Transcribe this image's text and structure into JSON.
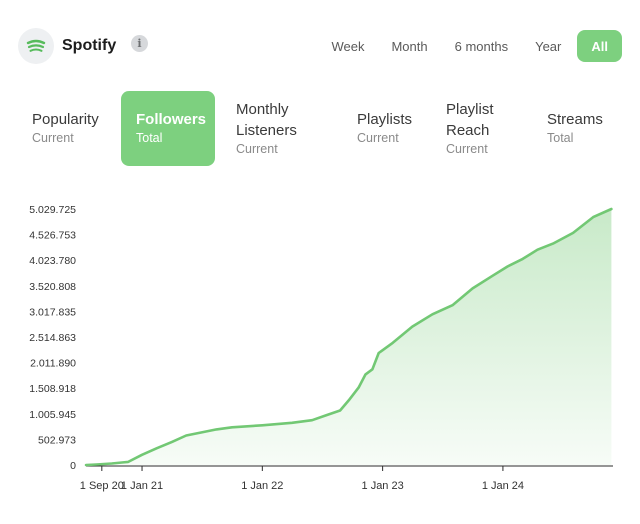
{
  "header": {
    "brand_name": "Spotify",
    "info_label": "i",
    "ranges": [
      {
        "label": "Week",
        "active": false
      },
      {
        "label": "Month",
        "active": false
      },
      {
        "label": "6 months",
        "active": false
      },
      {
        "label": "Year",
        "active": false
      },
      {
        "label": "All",
        "active": true
      }
    ]
  },
  "metrics": [
    {
      "label": [
        "Popularity"
      ],
      "sub": "Current",
      "active": false
    },
    {
      "label": [
        "Followers"
      ],
      "sub": "Total",
      "active": true
    },
    {
      "label": [
        "Monthly",
        "Listeners"
      ],
      "sub": "Current",
      "active": false
    },
    {
      "label": [
        "Playlists"
      ],
      "sub": "Current",
      "active": false
    },
    {
      "label": [
        "Playlist",
        "Reach"
      ],
      "sub": "Current",
      "active": false
    },
    {
      "label": [
        "Streams"
      ],
      "sub": "Total",
      "active": false
    }
  ],
  "colors": {
    "accent": "#7dd07f",
    "line": "#72c874",
    "fill": "#9bd89c",
    "brand_icon": "#57bb5c"
  },
  "chart_data": {
    "type": "area",
    "x_axis": "date",
    "xlim": [
      "2020-07-15",
      "2024-11-30"
    ],
    "ylim": [
      0,
      5029725
    ],
    "y_ticks": [
      "0",
      "502.973",
      "1.005.945",
      "1.508.918",
      "2.011.890",
      "2.514.863",
      "3.017.835",
      "3.520.808",
      "4.023.780",
      "4.526.753",
      "5.029.725"
    ],
    "x_ticks": [
      {
        "label": "1 Sep 20",
        "date": "2020-09-01"
      },
      {
        "label": "1 Jan 21",
        "date": "2021-01-01"
      },
      {
        "label": "1 Jan 22",
        "date": "2022-01-01"
      },
      {
        "label": "1 Jan 23",
        "date": "2023-01-01"
      },
      {
        "label": "1 Jan 24",
        "date": "2024-01-01"
      }
    ],
    "series": [
      {
        "points": [
          [
            "2020-07-15",
            0
          ],
          [
            "2020-08-15",
            10000
          ],
          [
            "2020-10-01",
            30000
          ],
          [
            "2020-11-01",
            50000
          ],
          [
            "2020-11-20",
            60000
          ],
          [
            "2021-01-01",
            200000
          ],
          [
            "2021-02-15",
            330000
          ],
          [
            "2021-04-01",
            450000
          ],
          [
            "2021-05-15",
            580000
          ],
          [
            "2021-07-01",
            640000
          ],
          [
            "2021-08-15",
            700000
          ],
          [
            "2021-10-01",
            740000
          ],
          [
            "2022-01-01",
            780000
          ],
          [
            "2022-04-01",
            830000
          ],
          [
            "2022-06-01",
            880000
          ],
          [
            "2022-07-15",
            980000
          ],
          [
            "2022-08-25",
            1070000
          ],
          [
            "2022-09-20",
            1270000
          ],
          [
            "2022-10-20",
            1520000
          ],
          [
            "2022-11-10",
            1780000
          ],
          [
            "2022-12-01",
            1880000
          ],
          [
            "2022-12-20",
            2200000
          ],
          [
            "2023-02-01",
            2400000
          ],
          [
            "2023-04-01",
            2720000
          ],
          [
            "2023-06-01",
            2960000
          ],
          [
            "2023-08-01",
            3140000
          ],
          [
            "2023-10-01",
            3470000
          ],
          [
            "2023-12-01",
            3720000
          ],
          [
            "2024-01-15",
            3900000
          ],
          [
            "2024-03-01",
            4050000
          ],
          [
            "2024-04-15",
            4230000
          ],
          [
            "2024-06-01",
            4350000
          ],
          [
            "2024-08-01",
            4560000
          ],
          [
            "2024-10-01",
            4870000
          ],
          [
            "2024-11-25",
            5029725
          ]
        ]
      }
    ]
  }
}
